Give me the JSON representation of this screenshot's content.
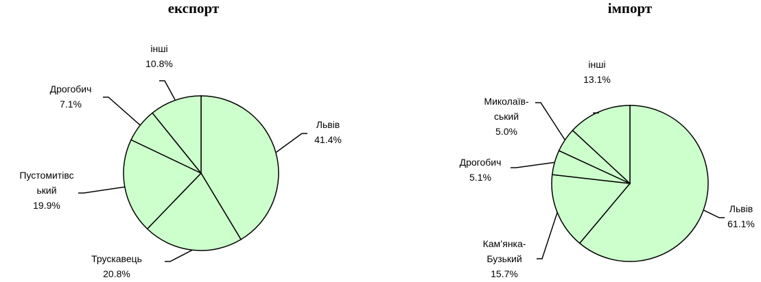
{
  "chart_data": [
    {
      "type": "pie",
      "title": "експорт",
      "color": "#ccffcc",
      "categories": [
        "Львів",
        "Трускавець",
        "Пустомитівс\nький",
        "Дрогобич",
        "інші"
      ],
      "values": [
        41.4,
        20.8,
        19.9,
        7.1,
        10.8
      ],
      "value_labels": [
        "41.4%",
        "20.8%",
        "19.9%",
        "7.1%",
        "10.8%"
      ]
    },
    {
      "type": "pie",
      "title": "імпорт",
      "color": "#ccffcc",
      "categories": [
        "Львів",
        "Кам’янка-\nБузький",
        "Дрогобич",
        "Миколаїв-\nський",
        "інші"
      ],
      "values": [
        61.1,
        15.7,
        5.1,
        5.0,
        13.1
      ],
      "value_labels": [
        "61.1%",
        "15.7%",
        "5.1%",
        "5.0%",
        "13.1%"
      ]
    }
  ]
}
